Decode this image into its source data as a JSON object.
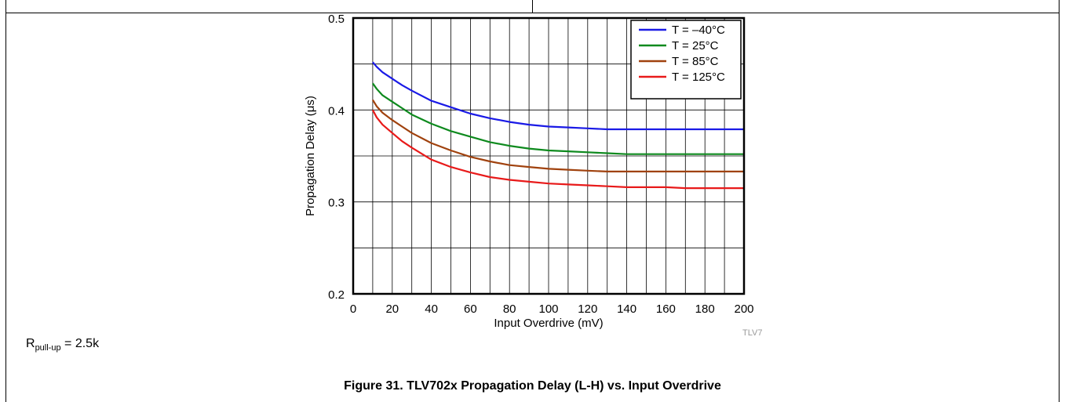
{
  "note": {
    "symbol": "R",
    "subscript": "pull-up",
    "value_text": " = 2.5k"
  },
  "caption": "Figure 31. TLV702x Propagation Delay (L-H) vs. Input Overdrive",
  "graph_code": "TLV7",
  "colors": {
    "t_neg40": "#1a1ae6",
    "t_25": "#0e8a1e",
    "t_85": "#a0420e",
    "t_125": "#e81a1a"
  },
  "chart_data": {
    "type": "line",
    "xlabel": "Input Overdrive (mV)",
    "ylabel": "Propagation Delay (μs)",
    "xlim": [
      0,
      200
    ],
    "ylim": [
      0.2,
      0.5
    ],
    "xticks": [
      0,
      20,
      40,
      60,
      80,
      100,
      120,
      140,
      160,
      180,
      200
    ],
    "yticks": [
      0.2,
      0.3,
      0.4,
      0.5
    ],
    "ytick_labels": [
      "0.2",
      "0.3",
      "0.4",
      "0.5"
    ],
    "grid": {
      "x_step": 10,
      "y_step": 0.05
    },
    "legend_position": "top-right",
    "x": [
      10,
      12,
      15,
      20,
      25,
      30,
      40,
      50,
      60,
      70,
      80,
      90,
      100,
      110,
      120,
      130,
      140,
      150,
      160,
      170,
      180,
      190,
      200
    ],
    "series": [
      {
        "name": "T = –40°C",
        "color": "#1a1ae6",
        "values": [
          0.452,
          0.447,
          0.441,
          0.434,
          0.427,
          0.421,
          0.41,
          0.403,
          0.396,
          0.391,
          0.387,
          0.384,
          0.382,
          0.381,
          0.38,
          0.379,
          0.379,
          0.379,
          0.379,
          0.379,
          0.379,
          0.379,
          0.379
        ]
      },
      {
        "name": "T = 25°C",
        "color": "#0e8a1e",
        "values": [
          0.429,
          0.423,
          0.416,
          0.409,
          0.402,
          0.395,
          0.385,
          0.377,
          0.371,
          0.365,
          0.361,
          0.358,
          0.356,
          0.355,
          0.354,
          0.353,
          0.352,
          0.352,
          0.352,
          0.352,
          0.352,
          0.352,
          0.352
        ]
      },
      {
        "name": "T = 85°C",
        "color": "#a0420e",
        "values": [
          0.411,
          0.404,
          0.397,
          0.389,
          0.382,
          0.375,
          0.364,
          0.356,
          0.349,
          0.344,
          0.34,
          0.338,
          0.336,
          0.335,
          0.334,
          0.333,
          0.333,
          0.333,
          0.333,
          0.333,
          0.333,
          0.333,
          0.333
        ]
      },
      {
        "name": "T = 125°C",
        "color": "#e81a1a",
        "values": [
          0.4,
          0.392,
          0.384,
          0.375,
          0.366,
          0.359,
          0.346,
          0.338,
          0.332,
          0.327,
          0.324,
          0.322,
          0.32,
          0.319,
          0.318,
          0.317,
          0.316,
          0.316,
          0.316,
          0.315,
          0.315,
          0.315,
          0.315
        ]
      }
    ]
  }
}
